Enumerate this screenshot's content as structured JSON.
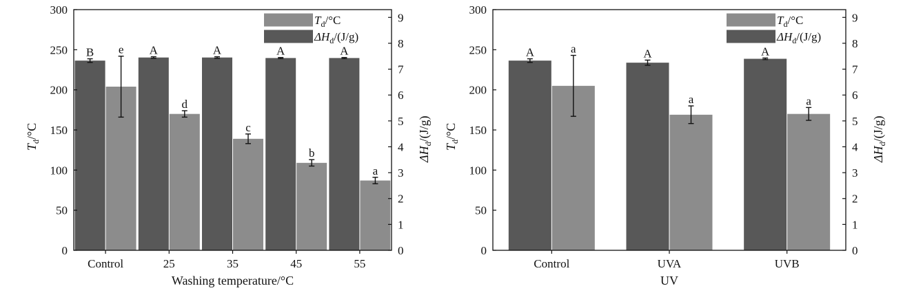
{
  "chart_data": [
    {
      "type": "bar",
      "xlabel": "Washing temperature/°C",
      "ylabel_left": {
        "symbol": "T",
        "sub": "d",
        "unit": "/°C"
      },
      "ylabel_right": {
        "symbol": "ΔH",
        "sub": "d",
        "unit": "/(J/g)"
      },
      "ylim_left": [
        0,
        300
      ],
      "yticks_left": [
        0,
        50,
        100,
        150,
        200,
        250,
        300
      ],
      "ylim_right": [
        0,
        9.3
      ],
      "yticks_right": [
        0,
        1,
        2,
        3,
        4,
        5,
        6,
        7,
        8,
        9
      ],
      "categories": [
        "Control",
        "25",
        "35",
        "45",
        "55"
      ],
      "series": [
        {
          "name": "ΔHd/(J/g)",
          "axis": "right",
          "color": "#585858",
          "values": [
            7.33,
            7.45,
            7.45,
            7.43,
            7.43
          ],
          "errors": [
            0.07,
            0.03,
            0.03,
            0.02,
            0.02
          ],
          "letters": [
            "B",
            "A",
            "A",
            "A",
            "A"
          ]
        },
        {
          "name": "Td/°C",
          "axis": "left",
          "color": "#8c8c8c",
          "values": [
            204,
            170,
            139,
            109,
            87
          ],
          "errors": [
            38,
            4,
            6,
            4,
            4
          ],
          "letters": [
            "e",
            "d",
            "c",
            "b",
            "a"
          ]
        }
      ],
      "legend": [
        {
          "symbol": "T",
          "sub": "d",
          "unit": "/°C",
          "color": "#8c8c8c"
        },
        {
          "symbol": "ΔH",
          "sub": "d",
          "unit": "/(J/g)",
          "color": "#585858"
        }
      ],
      "legend_placement": "top-right",
      "grid": false
    },
    {
      "type": "bar",
      "xlabel": "UV",
      "ylabel_left": {
        "symbol": "T",
        "sub": "d",
        "unit": "/°C"
      },
      "ylabel_right": {
        "symbol": "ΔH",
        "sub": "d",
        "unit": "/(J/g)"
      },
      "ylim_left": [
        0,
        300
      ],
      "yticks_left": [
        0,
        50,
        100,
        150,
        200,
        250,
        300
      ],
      "ylim_right": [
        0,
        9.3
      ],
      "yticks_right": [
        0,
        1,
        2,
        3,
        4,
        5,
        6,
        7,
        8,
        9
      ],
      "categories": [
        "Control",
        "UVA",
        "UVB"
      ],
      "series": [
        {
          "name": "ΔHd/(J/g)",
          "axis": "right",
          "color": "#585858",
          "values": [
            7.33,
            7.25,
            7.4
          ],
          "errors": [
            0.07,
            0.1,
            0.03
          ],
          "letters": [
            "A",
            "A",
            "A"
          ]
        },
        {
          "name": "Td/°C",
          "axis": "left",
          "color": "#8c8c8c",
          "values": [
            205,
            169,
            170
          ],
          "errors": [
            38,
            11,
            8
          ],
          "letters": [
            "a",
            "a",
            "a"
          ]
        }
      ],
      "legend": [
        {
          "symbol": "T",
          "sub": "d",
          "unit": "/°C",
          "color": "#8c8c8c"
        },
        {
          "symbol": "ΔH",
          "sub": "d",
          "unit": "/(J/g)",
          "color": "#585858"
        }
      ],
      "legend_placement": "top-right",
      "grid": false
    }
  ]
}
